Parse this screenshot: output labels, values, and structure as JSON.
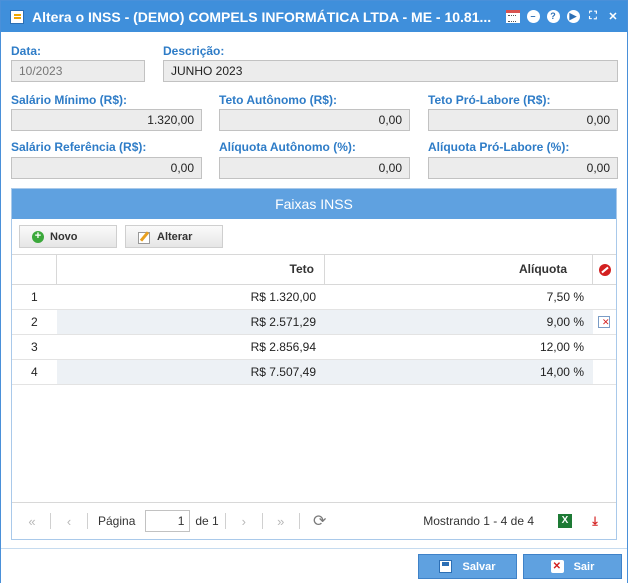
{
  "window": {
    "title": "Altera o INSS - (DEMO) COMPELS INFORMÁTICA LTDA - ME - 10.81...",
    "accent_color": "#3f8fdb",
    "tools": [
      "calendar-icon",
      "minimize-icon",
      "help-icon",
      "play-icon",
      "maximize-icon",
      "close-icon"
    ]
  },
  "form": {
    "data_label": "Data:",
    "data_value": "10/2023",
    "descricao_label": "Descrição:",
    "descricao_value": "JUNHO 2023",
    "salario_minimo_label": "Salário Mínimo (R$):",
    "salario_minimo_value": "1.320,00",
    "teto_autonomo_label": "Teto Autônomo (R$):",
    "teto_autonomo_value": "0,00",
    "teto_pro_labore_label": "Teto Pró-Labore (R$):",
    "teto_pro_labore_value": "0,00",
    "salario_referencia_label": "Salário Referência (R$):",
    "salario_referencia_value": "0,00",
    "aliquota_autonomo_label": "Alíquota Autônomo (%):",
    "aliquota_autonomo_value": "0,00",
    "aliquota_pro_labore_label": "Alíquota Pró-Labore (%):",
    "aliquota_pro_labore_value": "0,00"
  },
  "faixas": {
    "title": "Faixas INSS",
    "novo_label": "Novo",
    "alterar_label": "Alterar",
    "columns": {
      "teto": "Teto",
      "aliquota": "Alíquota"
    },
    "rows": [
      {
        "n": "1",
        "teto": "R$ 1.320,00",
        "aliquota": "7,50 %"
      },
      {
        "n": "2",
        "teto": "R$ 2.571,29",
        "aliquota": "9,00 %"
      },
      {
        "n": "3",
        "teto": "R$ 2.856,94",
        "aliquota": "12,00 %"
      },
      {
        "n": "4",
        "teto": "R$ 7.507,49",
        "aliquota": "14,00 %"
      }
    ],
    "pager": {
      "page_label": "Página",
      "page_value": "1",
      "of_label": "de 1",
      "showing": "Mostrando 1 - 4 de 4"
    }
  },
  "footer": {
    "save_label": "Salvar",
    "exit_label": "Sair"
  }
}
